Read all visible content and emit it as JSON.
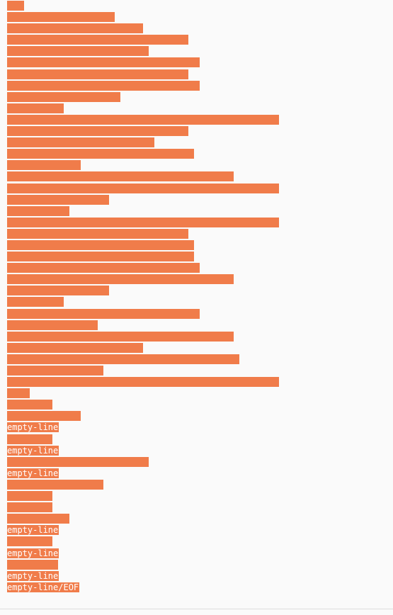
{
  "colors": {
    "bar": "#f07c4a",
    "background": "#fafafa",
    "label_text": "#ffffff"
  },
  "lines": [
    {
      "chars": 3
    },
    {
      "chars": 19
    },
    {
      "chars": 24
    },
    {
      "chars": 32
    },
    {
      "chars": 25
    },
    {
      "chars": 34
    },
    {
      "chars": 32
    },
    {
      "chars": 34
    },
    {
      "chars": 20
    },
    {
      "chars": 10
    },
    {
      "chars": 48
    },
    {
      "chars": 32
    },
    {
      "chars": 26
    },
    {
      "chars": 33
    },
    {
      "chars": 13
    },
    {
      "chars": 40
    },
    {
      "chars": 48
    },
    {
      "chars": 18
    },
    {
      "chars": 11
    },
    {
      "chars": 48
    },
    {
      "chars": 32
    },
    {
      "chars": 33
    },
    {
      "chars": 33
    },
    {
      "chars": 34
    },
    {
      "chars": 40
    },
    {
      "chars": 18
    },
    {
      "chars": 10
    },
    {
      "chars": 34
    },
    {
      "chars": 16
    },
    {
      "chars": 40
    },
    {
      "chars": 24
    },
    {
      "chars": 41
    },
    {
      "chars": 17
    },
    {
      "chars": 48
    },
    {
      "chars": 4
    },
    {
      "chars": 8
    },
    {
      "chars": 13
    },
    {
      "label": "empty-line"
    },
    {
      "chars": 8
    },
    {
      "label": "empty-line"
    },
    {
      "chars": 25
    },
    {
      "label": "empty-line"
    },
    {
      "chars": 17
    },
    {
      "chars": 8
    },
    {
      "chars": 8
    },
    {
      "chars": 11
    },
    {
      "label": "empty-line"
    },
    {
      "chars": 8
    },
    {
      "label": "empty-line"
    },
    {
      "chars": 9
    },
    {
      "label": "empty-line"
    },
    {
      "label": "empty-line/EOF"
    }
  ]
}
